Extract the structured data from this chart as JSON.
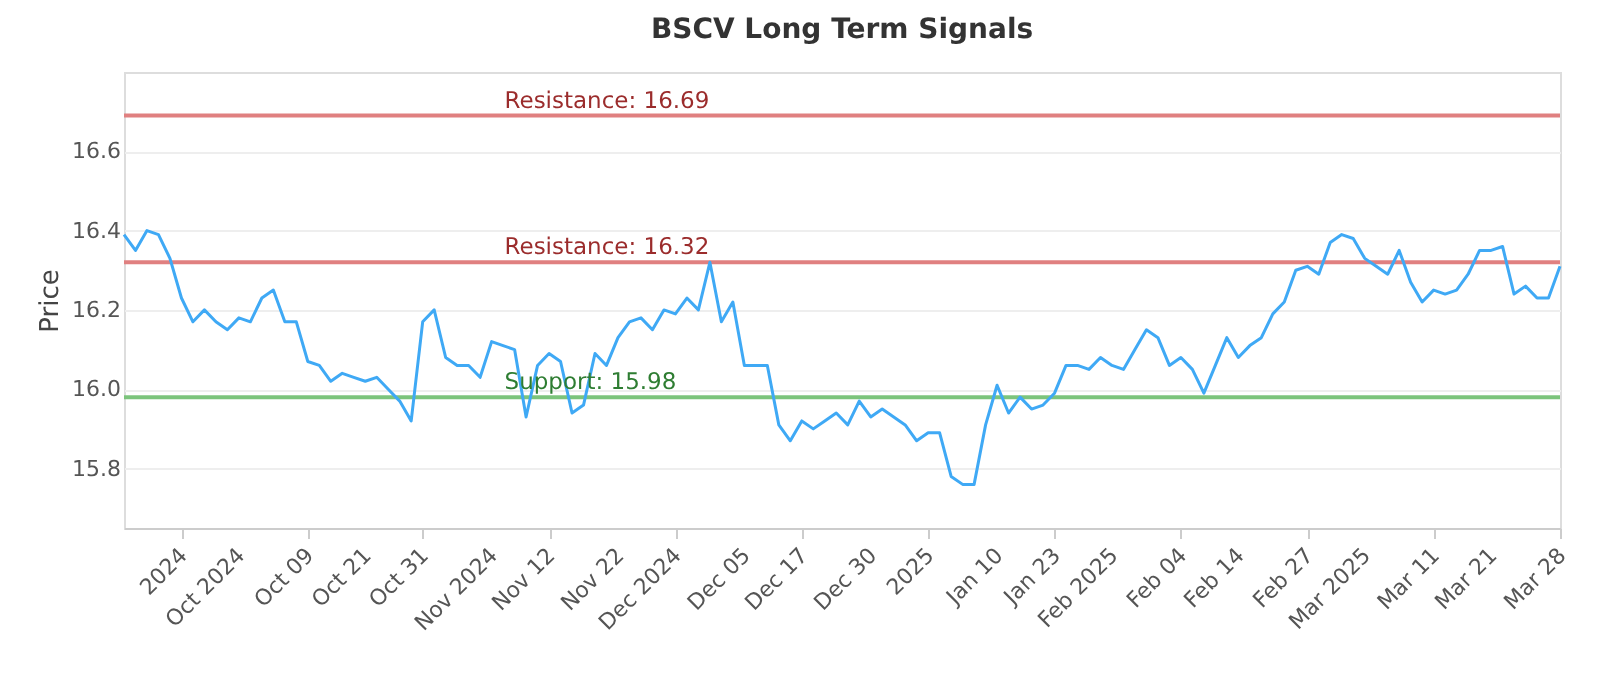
{
  "chart_data": {
    "type": "line",
    "title": "BSCV Long Term Signals",
    "ylabel": "Price",
    "categories": [
      null,
      null,
      null,
      null,
      null,
      "2024",
      null,
      null,
      null,
      null,
      "Oct 2024",
      null,
      null,
      null,
      null,
      null,
      "Oct 09",
      null,
      null,
      null,
      null,
      "Oct 21",
      null,
      null,
      null,
      null,
      "Oct 31",
      null,
      null,
      null,
      null,
      null,
      "Nov 2024",
      null,
      null,
      null,
      null,
      "Nov 12",
      null,
      null,
      null,
      null,
      null,
      "Nov 22",
      null,
      null,
      null,
      null,
      "Dec 2024",
      null,
      null,
      null,
      null,
      null,
      "Dec 05",
      null,
      null,
      null,
      null,
      "Dec 17",
      null,
      null,
      null,
      null,
      null,
      "Dec 30",
      null,
      null,
      null,
      null,
      "2025",
      null,
      null,
      null,
      null,
      null,
      "Jan 10",
      null,
      null,
      null,
      null,
      "Jan 23",
      null,
      null,
      null,
      null,
      "Feb 2025",
      null,
      null,
      null,
      null,
      null,
      "Feb 04",
      null,
      null,
      null,
      null,
      "Feb 14",
      null,
      null,
      null,
      null,
      null,
      "Feb 27",
      null,
      null,
      null,
      null,
      "Mar 2025",
      null,
      null,
      null,
      null,
      null,
      "Mar 11",
      null,
      null,
      null,
      null,
      "Mar 21",
      null,
      null,
      null,
      null,
      null,
      "Mar 28"
    ],
    "series": [
      {
        "color": "#3fa9f5",
        "values": [
          16.39,
          16.35,
          16.4,
          16.39,
          16.33,
          16.23,
          16.17,
          16.2,
          16.17,
          16.15,
          16.18,
          16.17,
          16.23,
          16.25,
          16.17,
          16.17,
          16.07,
          16.06,
          16.02,
          16.04,
          16.03,
          16.02,
          16.03,
          16.0,
          15.97,
          15.92,
          16.17,
          16.2,
          16.08,
          16.06,
          16.06,
          16.03,
          16.12,
          16.11,
          16.1,
          15.93,
          16.06,
          16.09,
          16.07,
          15.94,
          15.96,
          16.09,
          16.06,
          16.13,
          16.17,
          16.18,
          16.15,
          16.2,
          16.19,
          16.23,
          16.2,
          16.32,
          16.17,
          16.22,
          16.06,
          16.06,
          16.06,
          15.91,
          15.87,
          15.92,
          15.9,
          15.92,
          15.94,
          15.91,
          15.97,
          15.93,
          15.95,
          15.93,
          15.91,
          15.87,
          15.89,
          15.89,
          15.78,
          15.76,
          15.76,
          15.91,
          16.01,
          15.94,
          15.98,
          15.95,
          15.96,
          15.99,
          16.06,
          16.06,
          16.05,
          16.08,
          16.06,
          16.05,
          16.1,
          16.15,
          16.13,
          16.06,
          16.08,
          16.05,
          15.99,
          16.06,
          16.13,
          16.08,
          16.11,
          16.13,
          16.19,
          16.22,
          16.3,
          16.31,
          16.29,
          16.37,
          16.39,
          16.38,
          16.33,
          16.31,
          16.29,
          16.35,
          16.27,
          16.22,
          16.25,
          16.24,
          16.25,
          16.29,
          16.35,
          16.35,
          16.36,
          16.24,
          16.26,
          16.23,
          16.23,
          16.31
        ]
      }
    ],
    "ylim": [
      15.65,
      16.8
    ],
    "yticks": [
      15.8,
      {
        "value": 16,
        "label": "16.0"
      },
      16.2,
      16.4,
      16.6
    ],
    "grid": "y",
    "marker": "none",
    "ref_lines": [
      {
        "axis": "y",
        "value": 16.69,
        "label": "Resistance: 16.69",
        "color": "#e08080"
      },
      {
        "axis": "y",
        "value": 16.32,
        "label": "Resistance: 16.32",
        "color": "#e08080"
      },
      {
        "axis": "y",
        "value": 15.98,
        "label": "Support: 15.98",
        "color": "#7cc47c"
      }
    ]
  }
}
